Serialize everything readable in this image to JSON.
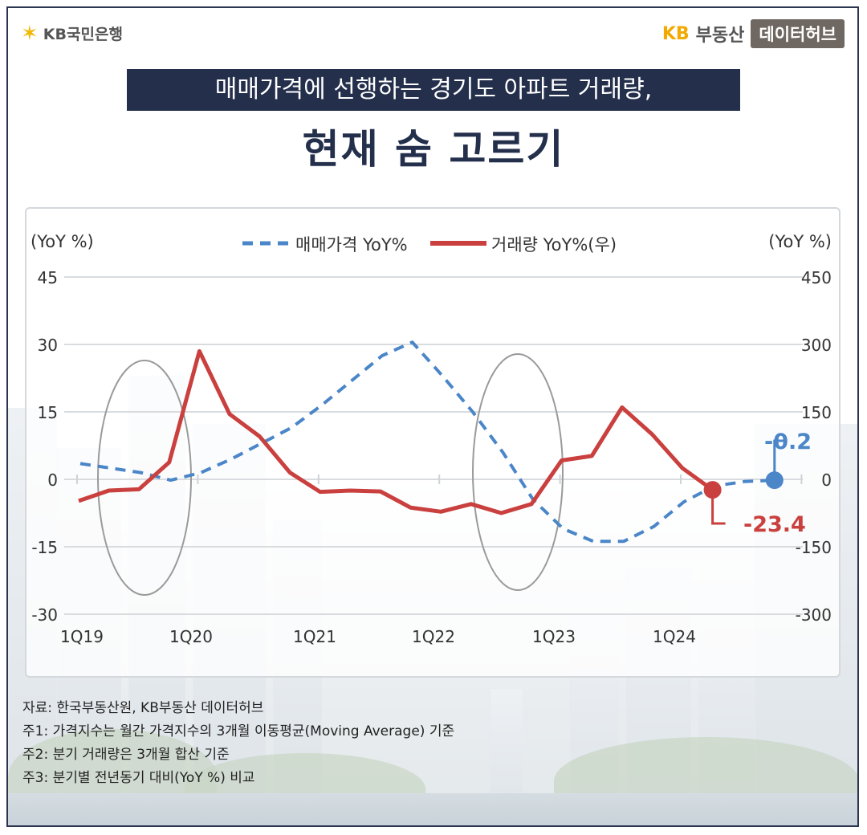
{
  "header": {
    "left_logo_text": "KB국민은행",
    "left_logo_icon": "kb-star-icon",
    "right_logo_kb": "KB",
    "right_logo_text": "부동산",
    "right_logo_badge": "데이터허브"
  },
  "title": {
    "line1": "매매가격에 선행하는 경기도 아파트 거래량,",
    "line2": "현재 숨 고르기"
  },
  "chart_data": {
    "type": "line",
    "left_axis_label": "(YoY %)",
    "right_axis_label": "(YoY %)",
    "left_ylim": [
      -30,
      45
    ],
    "right_ylim": [
      -300,
      450
    ],
    "left_ticks": [
      "45",
      "30",
      "15",
      "0",
      "-15",
      "-30"
    ],
    "right_ticks": [
      "450",
      "300",
      "150",
      "0",
      "-150",
      "-300"
    ],
    "x_tick_labels": [
      "1Q19",
      "1Q20",
      "1Q21",
      "1Q22",
      "1Q23",
      "1Q24"
    ],
    "legend_position": "top-center",
    "grid": true,
    "series": [
      {
        "name": "매매가격 YoY%",
        "axis": "left",
        "style": "dashed",
        "color": "#4a86c8",
        "x": [
          "1Q19",
          "2Q19",
          "3Q19",
          "4Q19",
          "1Q20",
          "2Q20",
          "3Q20",
          "4Q20",
          "1Q21",
          "2Q21",
          "3Q21",
          "4Q21",
          "1Q22",
          "2Q22",
          "3Q22",
          "4Q22",
          "1Q23",
          "2Q23",
          "3Q23",
          "4Q23",
          "1Q24",
          "2Q24",
          "3Q24",
          "4Q24"
        ],
        "values": [
          3.5,
          2.5,
          1.5,
          -0.2,
          1.5,
          4.5,
          8.0,
          11.5,
          16.5,
          22.0,
          27.5,
          30.5,
          23.0,
          15.0,
          6.0,
          -4.5,
          -11.0,
          -13.8,
          -13.8,
          -10.5,
          -5.0,
          -1.5,
          -0.5,
          -0.2
        ]
      },
      {
        "name": "거래량 YoY%(우)",
        "axis": "right",
        "style": "solid",
        "color": "#c9403e",
        "x": [
          "1Q19",
          "2Q19",
          "3Q19",
          "4Q19",
          "1Q20",
          "2Q20",
          "3Q20",
          "4Q20",
          "1Q21",
          "2Q21",
          "3Q21",
          "4Q21",
          "1Q22",
          "2Q22",
          "3Q22",
          "4Q22",
          "1Q23",
          "2Q23",
          "3Q23",
          "4Q23",
          "1Q24",
          "2Q24",
          "3Q24",
          "4Q24"
        ],
        "values": [
          -48,
          -25,
          -22,
          38,
          285,
          145,
          95,
          15,
          -28,
          -25,
          -27,
          -63,
          -72,
          -55,
          -75,
          -55,
          42,
          52,
          160,
          100,
          25,
          -23.4,
          null,
          null
        ]
      }
    ],
    "annotations": [
      {
        "text": "-0.2",
        "series": "매매가격 YoY%",
        "color": "#4a86c8"
      },
      {
        "text": "-23.4",
        "series": "거래량 YoY%(우)",
        "color": "#c9403e"
      }
    ],
    "highlights": [
      {
        "from": "2Q19",
        "to": "4Q19"
      },
      {
        "from": "4Q22",
        "to": "2Q23"
      }
    ]
  },
  "notes": [
    "자료: 한국부동산원, KB부동산 데이터허브",
    "주1: 가격지수는 월간 가격지수의 3개월 이동평균(Moving Average) 기준",
    "주2: 분기 거래량은 3개월 합산 기준",
    "주3: 분기별 전년동기 대비(YoY %) 비교"
  ]
}
